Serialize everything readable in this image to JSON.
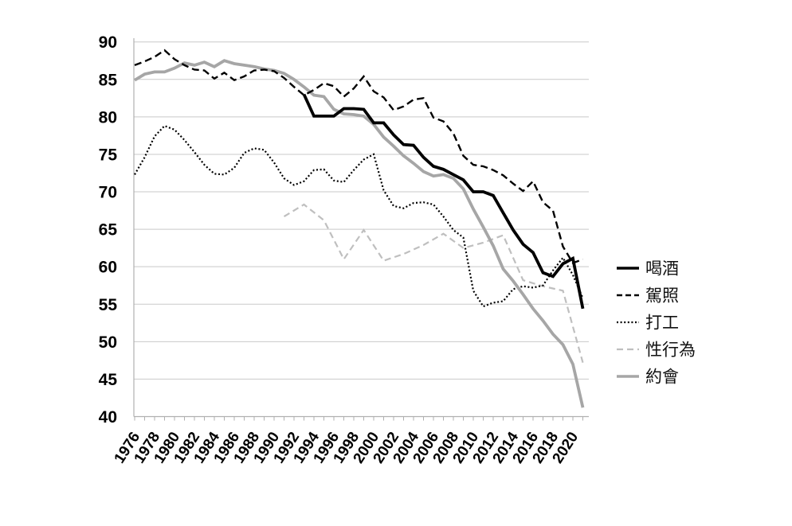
{
  "chart_data": {
    "type": "line",
    "title": "",
    "xlabel": "",
    "ylabel": "",
    "ylim": [
      40,
      90
    ],
    "xlim": [
      1976,
      2021
    ],
    "grid": "horizontal",
    "legend_position": "right",
    "background": "#ffffff",
    "grid_color": "#c9c9c9",
    "axis_color": "#b0b0b0",
    "y_tick_labels": [
      "90",
      "85",
      "80",
      "75",
      "70",
      "65",
      "60",
      "55",
      "50",
      "45",
      "40"
    ],
    "y_tick_values": [
      90,
      85,
      80,
      75,
      70,
      65,
      60,
      55,
      50,
      45,
      40
    ],
    "x_tick_labels": [
      "1976",
      "1978",
      "1980",
      "1982",
      "1984",
      "1986",
      "1988",
      "1990",
      "1992",
      "1994",
      "1996",
      "1998",
      "2000",
      "2002",
      "2004",
      "2006",
      "2008",
      "2010",
      "2012",
      "2014",
      "2016",
      "2018",
      "2020"
    ],
    "x_tick_years": [
      1976,
      1978,
      1980,
      1982,
      1984,
      1986,
      1988,
      1990,
      1992,
      1994,
      1996,
      1998,
      2000,
      2002,
      2004,
      2006,
      2008,
      2010,
      2012,
      2014,
      2016,
      2018,
      2020
    ],
    "series": [
      {
        "name": "喝酒",
        "line_style": "solid",
        "color": "#000000",
        "width": 3.8,
        "start_year": 1993,
        "step": 1,
        "values": [
          83.0,
          80.1,
          80.1,
          80.1,
          81.1,
          81.1,
          81.0,
          79.2,
          79.2,
          77.6,
          76.3,
          76.2,
          74.6,
          73.4,
          73.0,
          72.3,
          71.6,
          70.0,
          70.0,
          69.5,
          67.2,
          64.9,
          63.0,
          61.9,
          59.2,
          58.7,
          60.4,
          61.1,
          54.4
        ]
      },
      {
        "name": "駕照",
        "line_style": "dashed",
        "color": "#000000",
        "width": 2.4,
        "start_year": 1976,
        "step": 1,
        "values": [
          86.9,
          87.4,
          88.0,
          88.9,
          87.7,
          86.9,
          86.3,
          86.2,
          85.1,
          85.9,
          84.9,
          85.4,
          86.2,
          86.3,
          86.1,
          85.2,
          84.0,
          82.9,
          83.6,
          84.5,
          84.1,
          82.7,
          83.8,
          85.4,
          83.4,
          82.6,
          80.9,
          81.4,
          82.3,
          82.5,
          79.9,
          79.4,
          77.8,
          74.8,
          73.6,
          73.4,
          72.9,
          72.2,
          71.1,
          70.1,
          71.4,
          68.6,
          67.5,
          62.7,
          60.5,
          61.0
        ]
      },
      {
        "name": "打工",
        "line_style": "dotted",
        "color": "#000000",
        "width": 2.2,
        "start_year": 1976,
        "step": 1,
        "values": [
          72.3,
          74.6,
          77.4,
          78.8,
          78.3,
          76.9,
          75.3,
          73.6,
          72.4,
          72.3,
          73.2,
          75.2,
          75.8,
          75.6,
          73.9,
          71.8,
          70.9,
          71.4,
          72.9,
          73.0,
          71.5,
          71.3,
          72.9,
          74.3,
          75.0,
          70.2,
          68.1,
          67.8,
          68.5,
          68.6,
          68.3,
          66.7,
          64.9,
          63.9,
          56.8,
          54.7,
          55.2,
          55.4,
          57.0,
          57.4,
          57.2,
          57.5,
          59.5,
          61.2,
          58.9,
          55.8
        ]
      },
      {
        "name": "性行為",
        "line_style": "dashed",
        "color": "#bfbfbf",
        "width": 2.2,
        "start_year": 1991,
        "step": 2,
        "values": [
          66.7,
          68.3,
          66.2,
          61.0,
          64.9,
          60.8,
          61.7,
          62.9,
          64.4,
          62.5,
          63.2,
          64.2,
          58.2,
          57.4,
          56.8,
          47.2
        ]
      },
      {
        "name": "約會",
        "line_style": "solid",
        "color": "#a6a6a6",
        "width": 3.8,
        "start_year": 1976,
        "step": 1,
        "values": [
          84.9,
          85.7,
          86.0,
          86.0,
          86.5,
          87.2,
          86.9,
          87.3,
          86.7,
          87.5,
          87.1,
          86.9,
          86.7,
          86.4,
          86.2,
          85.8,
          85.0,
          84.0,
          82.9,
          82.7,
          81.0,
          80.4,
          80.3,
          80.1,
          79.0,
          77.3,
          76.1,
          74.8,
          73.8,
          72.7,
          72.1,
          72.3,
          71.8,
          70.4,
          67.7,
          65.3,
          62.8,
          59.7,
          58.1,
          56.3,
          54.4,
          52.8,
          51.0,
          49.6,
          47.0,
          41.2
        ]
      }
    ],
    "legend_labels": [
      "喝酒",
      "駕照",
      "打工",
      "性行為",
      "約會"
    ]
  }
}
